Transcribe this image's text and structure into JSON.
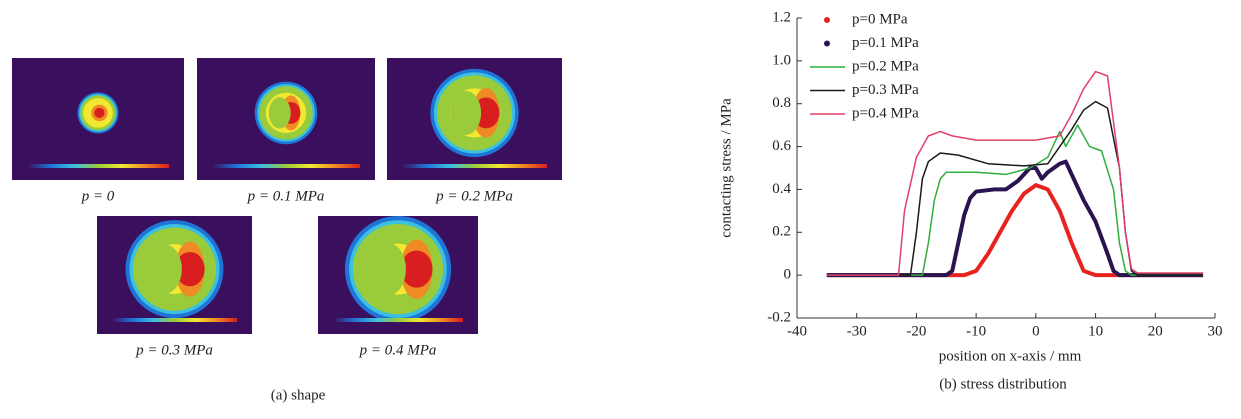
{
  "panel_a": {
    "caption": "(a) shape",
    "labels": [
      "p = 0",
      "p = 0.1 MPa",
      "p = 0.2 MPa",
      "p = 0.3 MPa",
      "p = 0.4 MPa"
    ]
  },
  "chart_data": {
    "type": "line",
    "caption": "(b) stress distribution",
    "xlabel": "position on x-axis / mm",
    "ylabel": "contacting stress / MPa",
    "xlim": [
      -40,
      30
    ],
    "xticks": [
      -40,
      -30,
      -20,
      -10,
      0,
      10,
      20,
      30
    ],
    "ylim": [
      -0.2,
      1.2
    ],
    "yticks": [
      -0.2,
      0,
      0.2,
      0.4,
      0.6,
      0.8,
      {
        "value": 1,
        "label": "1.0"
      },
      1.2
    ],
    "series": [
      {
        "name": "p=0 MPa",
        "color": "#e8231f",
        "line_width": 4,
        "x": [
          -35,
          -12,
          -10,
          -8,
          -6,
          -4,
          -2,
          0,
          2,
          4,
          6,
          8,
          10,
          28
        ],
        "values": [
          0,
          0,
          0.02,
          0.1,
          0.2,
          0.3,
          0.38,
          0.42,
          0.4,
          0.3,
          0.15,
          0.02,
          0,
          0
        ]
      },
      {
        "name": "p=0.1 MPa",
        "color": "#2a1450",
        "line_width": 4,
        "x": [
          -35,
          -15,
          -14,
          -13,
          -12,
          -11,
          -10,
          -7,
          -5,
          -3,
          -1,
          0,
          1,
          2,
          4,
          5,
          6,
          8,
          10,
          12,
          13,
          14,
          28
        ],
        "values": [
          0,
          0,
          0.02,
          0.15,
          0.28,
          0.36,
          0.39,
          0.4,
          0.4,
          0.44,
          0.5,
          0.5,
          0.45,
          0.48,
          0.52,
          0.53,
          0.47,
          0.35,
          0.25,
          0.1,
          0.02,
          0,
          0
        ]
      },
      {
        "name": "p=0.2 MPa",
        "color": "#2fae3c",
        "line_width": 1.5,
        "x": [
          -35,
          -19,
          -18,
          -17,
          -16,
          -15,
          -10,
          -5,
          -1,
          2,
          4,
          5,
          7,
          9,
          11,
          13,
          14,
          15,
          16,
          28
        ],
        "values": [
          0,
          0,
          0.15,
          0.35,
          0.45,
          0.48,
          0.48,
          0.47,
          0.5,
          0.55,
          0.67,
          0.6,
          0.7,
          0.6,
          0.58,
          0.4,
          0.15,
          0.02,
          0,
          0
        ]
      },
      {
        "name": "p=0.3 MPa",
        "color": "#1a1a1a",
        "line_width": 1.5,
        "x": [
          -35,
          -21,
          -20,
          -19,
          -18,
          -16,
          -13,
          -8,
          -2,
          2,
          4,
          6,
          8,
          10,
          12,
          14,
          15,
          16,
          17,
          28
        ],
        "values": [
          0,
          0,
          0.2,
          0.45,
          0.53,
          0.57,
          0.56,
          0.52,
          0.51,
          0.52,
          0.6,
          0.68,
          0.77,
          0.81,
          0.78,
          0.5,
          0.2,
          0.02,
          0,
          0
        ]
      },
      {
        "name": "p=0.4 MPa",
        "color": "#e0406a",
        "line_width": 1.5,
        "x": [
          -35,
          -23,
          -22,
          -20,
          -18,
          -16,
          -14,
          -10,
          -4,
          0,
          4,
          6,
          8,
          10,
          12,
          14,
          15,
          16,
          17,
          28
        ],
        "values": [
          0,
          0,
          0.3,
          0.55,
          0.65,
          0.67,
          0.65,
          0.63,
          0.63,
          0.63,
          0.65,
          0.75,
          0.87,
          0.95,
          0.93,
          0.5,
          0.2,
          0.03,
          0.01,
          0.01
        ]
      }
    ]
  }
}
